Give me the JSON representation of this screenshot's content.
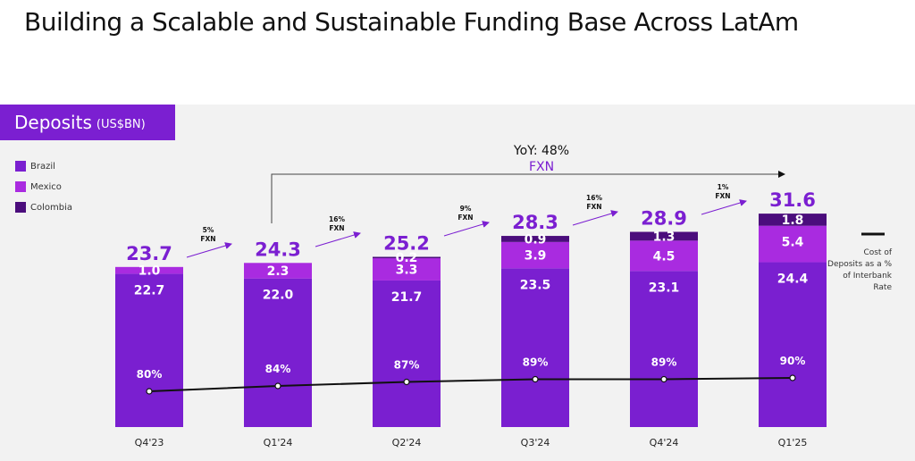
{
  "title": "Building a Scalable and Sustainable Funding Base Across LatAm",
  "badge": {
    "main": "Deposits",
    "unit": "(US$BN)"
  },
  "colors": {
    "Brazil": "#7a1fd0",
    "Mexico": "#a92be0",
    "Colombia": "#4b0d7c",
    "accent": "#7b1fd1",
    "line": "#111111"
  },
  "chart_data": {
    "type": "bar",
    "stacked": true,
    "categories": [
      "Q4'23",
      "Q1'24",
      "Q2'24",
      "Q3'24",
      "Q4'24",
      "Q1'25"
    ],
    "series": [
      {
        "name": "Brazil",
        "values": [
          22.7,
          22.0,
          21.7,
          23.5,
          23.1,
          24.4
        ]
      },
      {
        "name": "Mexico",
        "values": [
          1.0,
          2.3,
          3.3,
          3.9,
          4.5,
          5.4
        ]
      },
      {
        "name": "Colombia",
        "values": [
          0.0,
          0.0,
          0.2,
          0.9,
          1.3,
          1.8
        ]
      }
    ],
    "totals": [
      "23.7",
      "24.3",
      "25.2",
      "28.3",
      "28.9",
      "31.6"
    ],
    "line_series": {
      "name": "Cost of Deposits as a % of Interbank Rate",
      "values": [
        80,
        84,
        87,
        89,
        89,
        90
      ],
      "labels": [
        "80%",
        "84%",
        "87%",
        "89%",
        "89%",
        "90%"
      ]
    },
    "growth_annotations": [
      {
        "pct": "5%",
        "label": "FXN"
      },
      {
        "pct": "16%",
        "label": "FXN"
      },
      {
        "pct": "9%",
        "label": "FXN"
      },
      {
        "pct": "16%",
        "label": "FXN"
      },
      {
        "pct": "1%",
        "label": "FXN"
      }
    ],
    "yoy": {
      "text": "YoY: 48%",
      "sub": "FXN"
    },
    "legend_placement": "top-left",
    "grid": false
  }
}
